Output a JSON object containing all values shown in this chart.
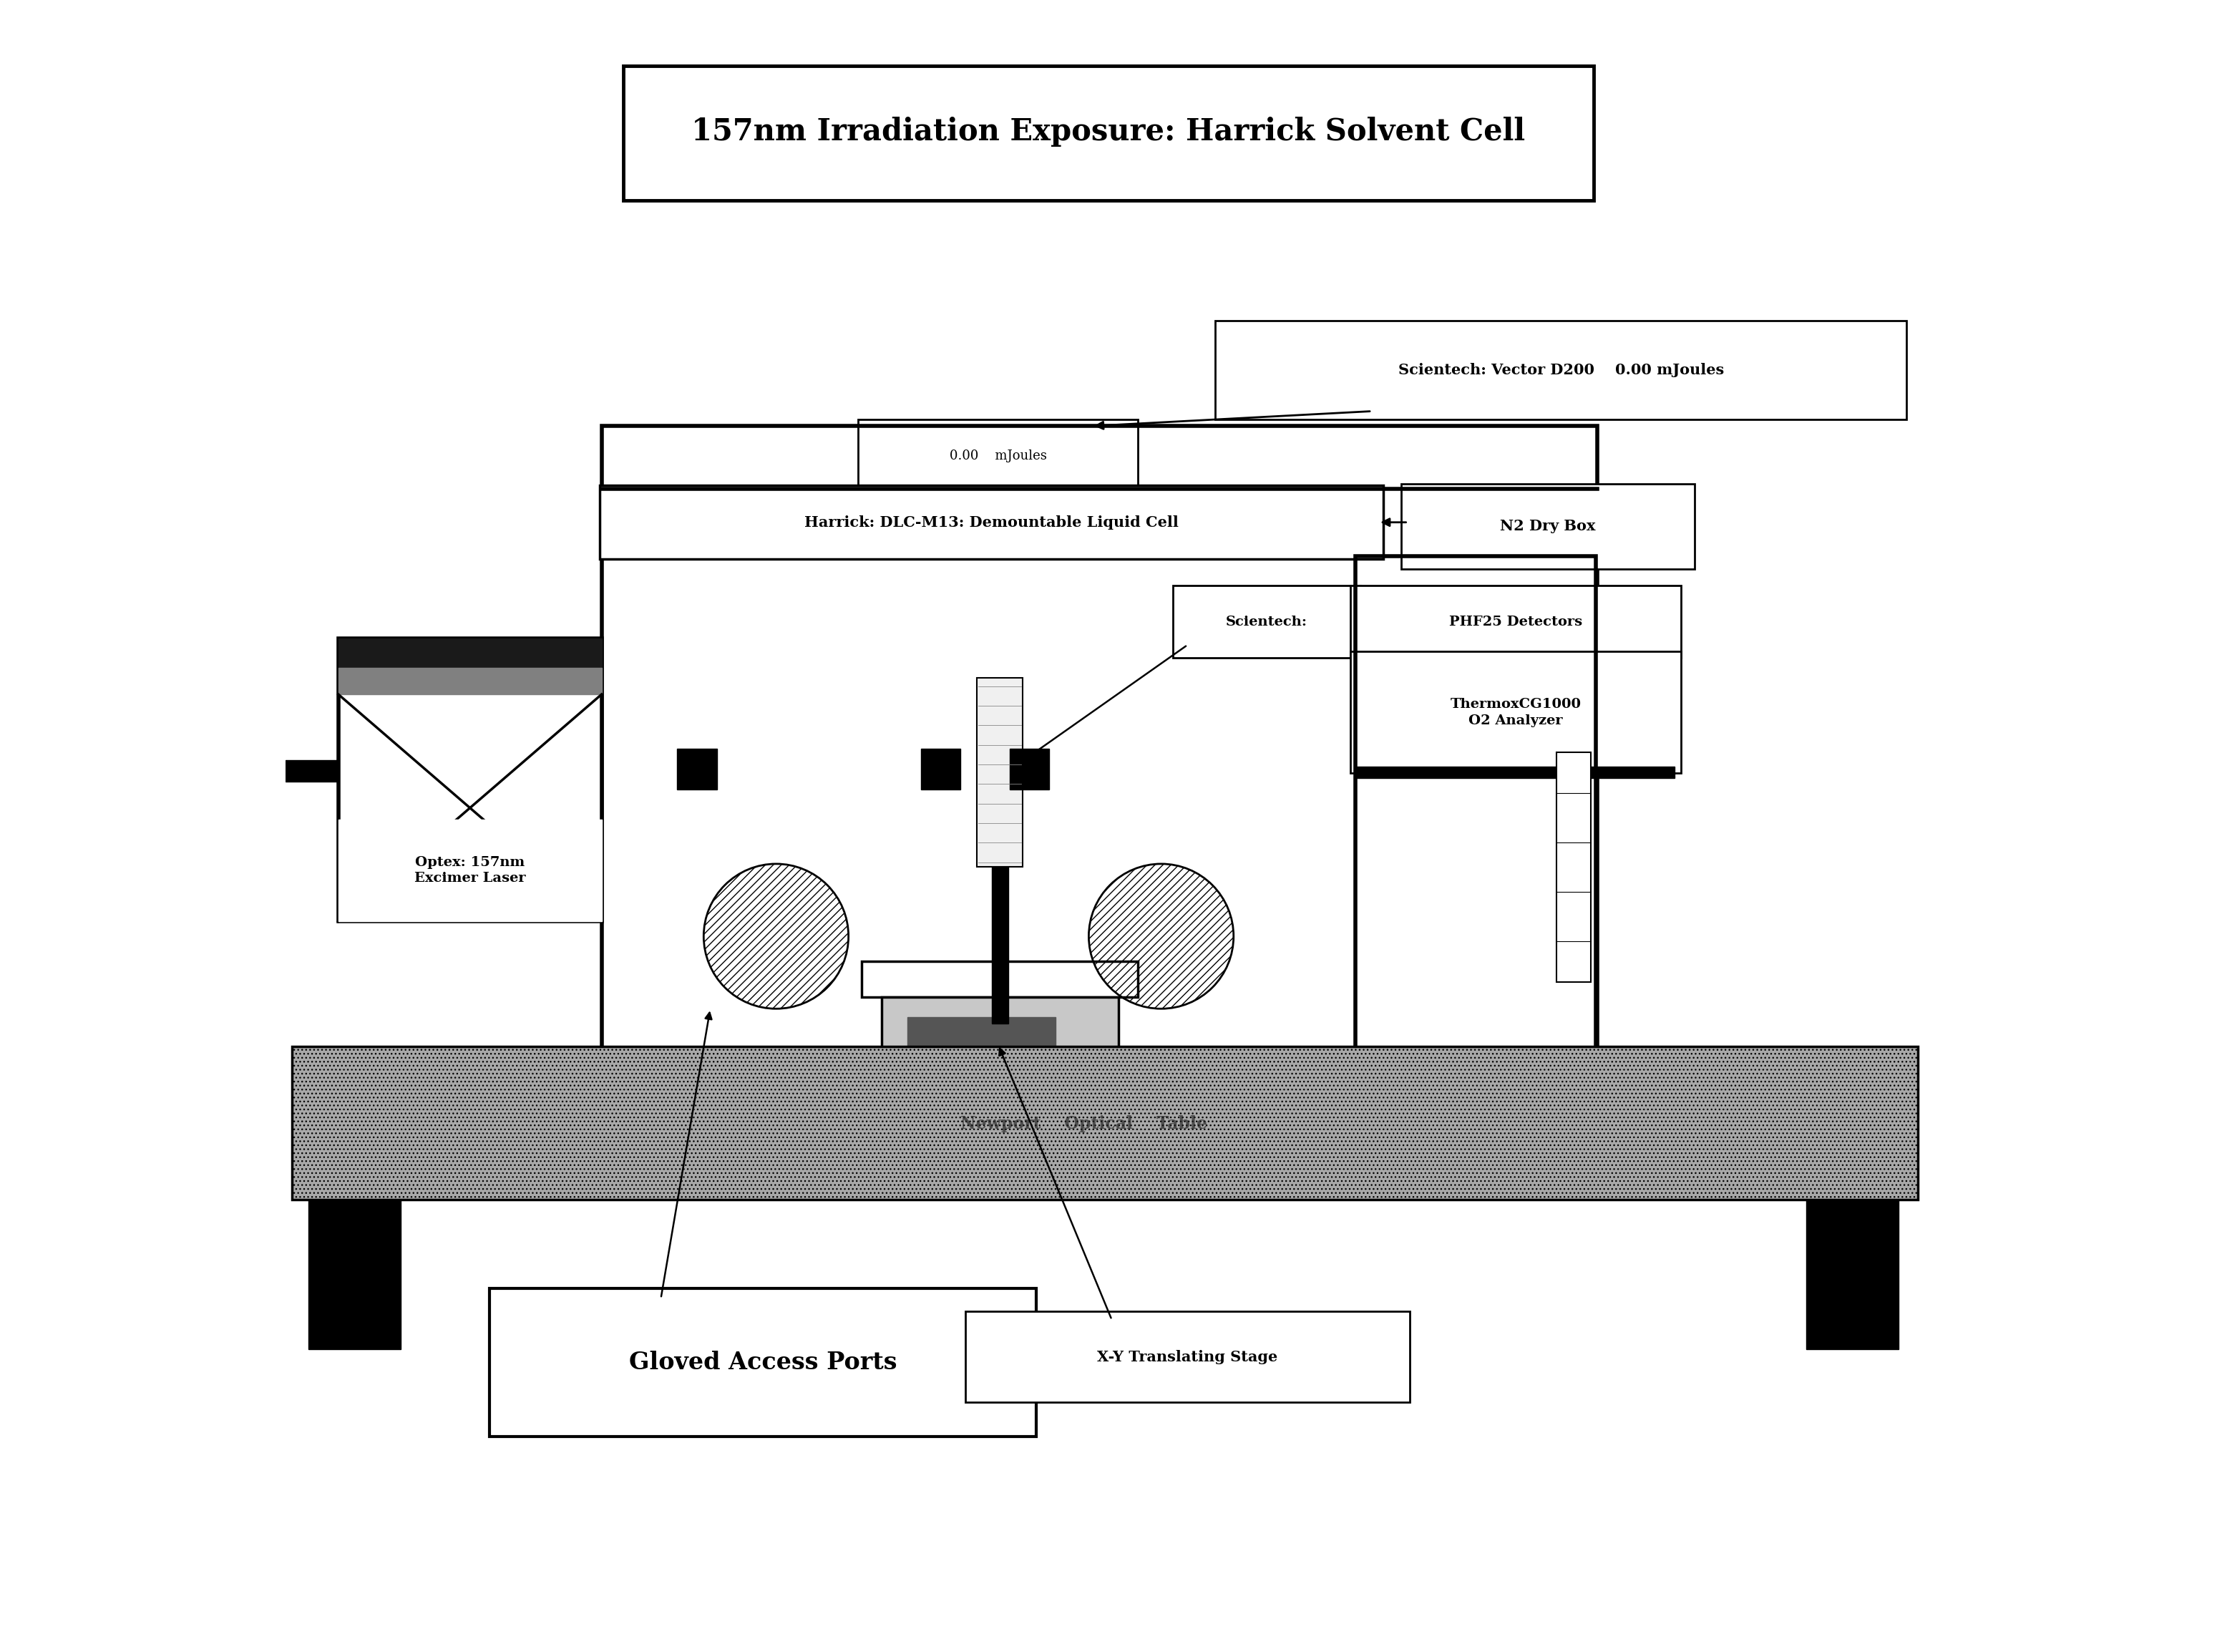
{
  "title": "157nm Irradiation Exposure: Harrick Solvent Cell",
  "bg_color": "#ffffff",
  "fig_width": 30.98,
  "fig_height": 23.08,
  "labels": {
    "scientech_vector": "Scientech: Vector D200    0.00 mJoules",
    "mjoules_box": "0.00    mJoules",
    "harrick_dlc": "Harrick: DLC-M13: Demountable Liquid Cell",
    "n2_dry_box": "N2 Dry Box",
    "scientech_left": "Scientech:",
    "scientech_right": "PHF25 Detectors",
    "thermox": "ThermoxCG1000\nO2 Analyzer",
    "optex": "Optex: 157nm\nExcimer Laser",
    "gloved": "Gloved Access Ports",
    "xy_stage": "X-Y Translating Stage",
    "newport": "Newport    Optical    Table"
  }
}
